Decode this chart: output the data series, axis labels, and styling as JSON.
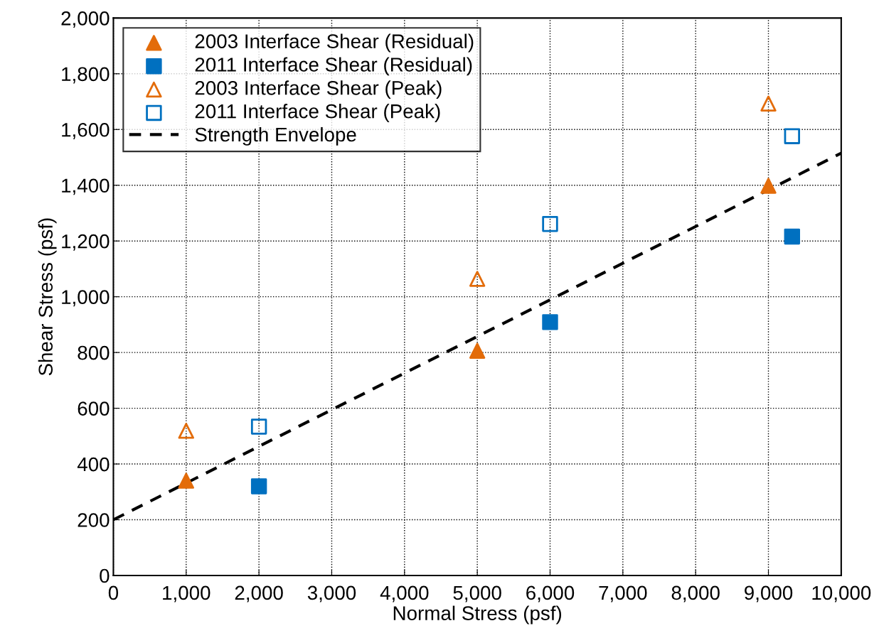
{
  "chart_data": {
    "type": "scatter",
    "xlabel": "Normal Stress (psf)",
    "ylabel": "Shear Stress (psf)",
    "series": [
      {
        "name": "2003 Interface Shear (Residual)",
        "color": "#e36c0a",
        "marker": "triangle",
        "x": [
          1000,
          5000,
          9000
        ],
        "values": [
          340,
          806,
          1398
        ]
      },
      {
        "name": "2011 Interface Shear (Residual)",
        "color": "#0070c0",
        "marker": "square",
        "x": [
          2000,
          6000,
          9325
        ],
        "values": [
          320,
          909,
          1216
        ]
      },
      {
        "name": "2003 Interface Shear (Peak)",
        "color": "#e36c0a",
        "marker": "triangle-open",
        "x": [
          1000,
          5000,
          9000
        ],
        "values": [
          519,
          1064,
          1693
        ]
      },
      {
        "name": "2011 Interface Shear (Peak)",
        "color": "#0070c0",
        "marker": "square-open",
        "x": [
          2000,
          6000,
          9325
        ],
        "values": [
          534,
          1261,
          1576
        ]
      },
      {
        "name": "Strength Envelope",
        "type": "line",
        "color": "#000000",
        "line_style": "dashed",
        "marker": "none",
        "x": [
          0,
          10000
        ],
        "values": [
          200,
          1515
        ]
      }
    ],
    "xlim": [
      0,
      10000
    ],
    "xticks": [
      {
        "value": 0,
        "label": "0"
      },
      {
        "value": 1000,
        "label": "1,000"
      },
      {
        "value": 2000,
        "label": "2,000"
      },
      {
        "value": 3000,
        "label": "3,000"
      },
      {
        "value": 4000,
        "label": "4,000"
      },
      {
        "value": 5000,
        "label": "5,000"
      },
      {
        "value": 6000,
        "label": "6,000"
      },
      {
        "value": 7000,
        "label": "7,000"
      },
      {
        "value": 8000,
        "label": "8,000"
      },
      {
        "value": 9000,
        "label": "9,000"
      },
      {
        "value": 10000,
        "label": "10,000"
      }
    ],
    "ylim": [
      0,
      2000
    ],
    "yticks": [
      {
        "value": 0,
        "label": "0"
      },
      {
        "value": 200,
        "label": "200"
      },
      {
        "value": 400,
        "label": "400"
      },
      {
        "value": 600,
        "label": "600"
      },
      {
        "value": 800,
        "label": "800"
      },
      {
        "value": 1000,
        "label": "1,000"
      },
      {
        "value": 1200,
        "label": "1,200"
      },
      {
        "value": 1400,
        "label": "1,400"
      },
      {
        "value": 1600,
        "label": "1,600"
      },
      {
        "value": 1800,
        "label": "1,800"
      },
      {
        "value": 2000,
        "label": "2,000"
      }
    ],
    "grid": true,
    "legend": "top left"
  }
}
